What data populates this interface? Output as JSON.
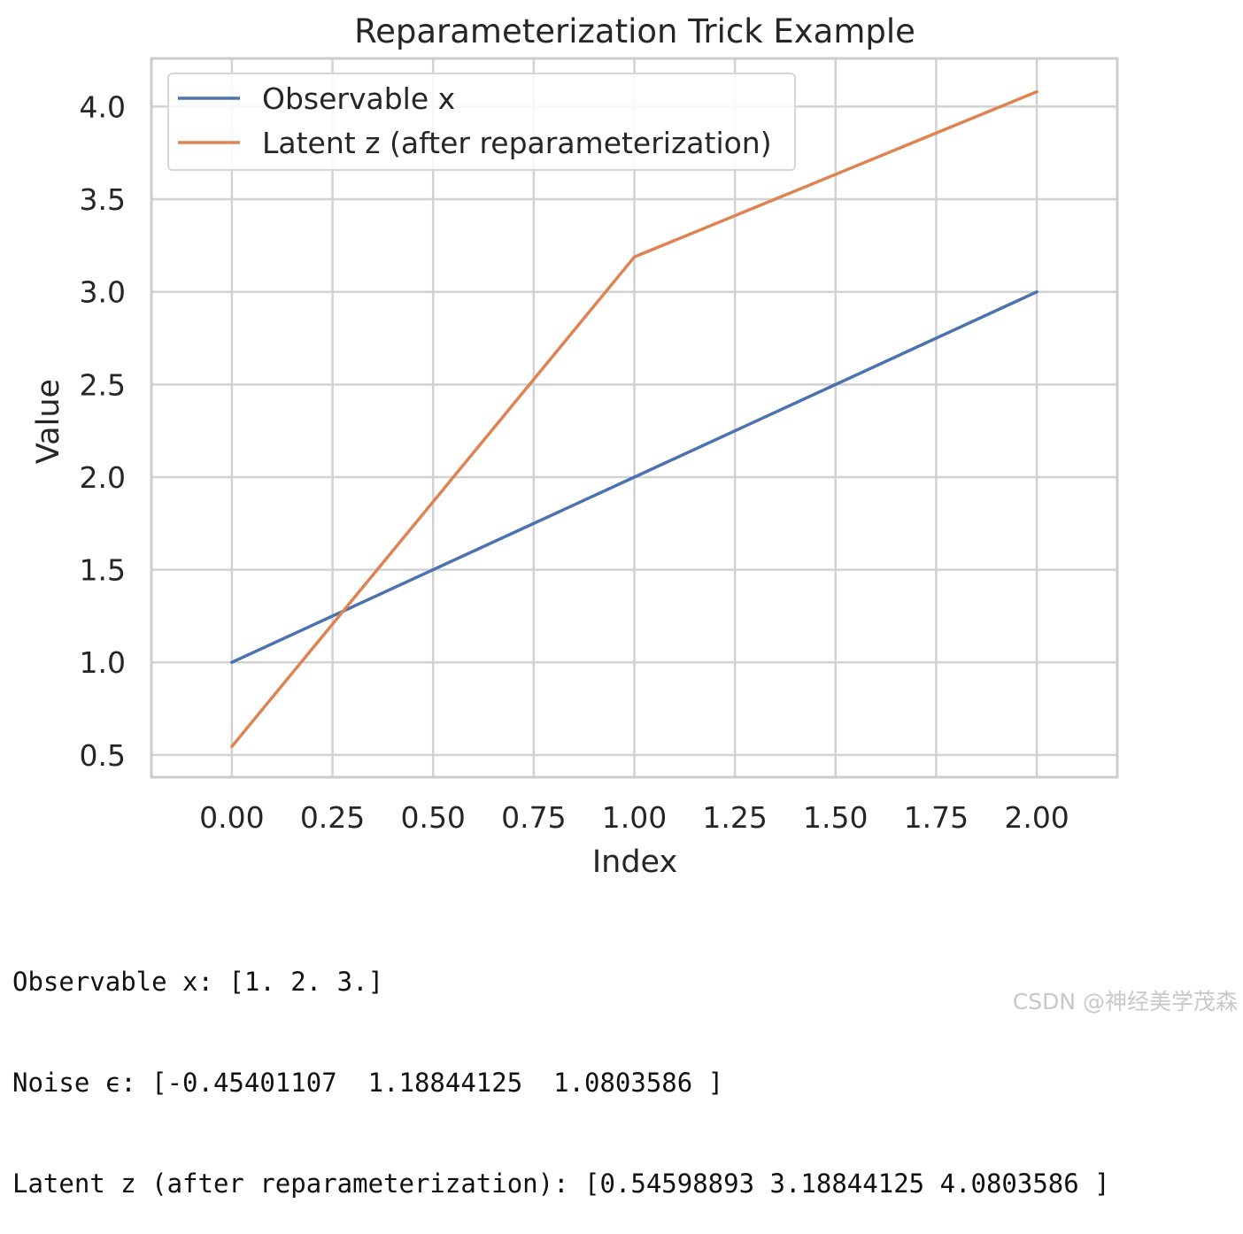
{
  "chart_data": {
    "type": "line",
    "title": "Reparameterization Trick Example",
    "xlabel": "Index",
    "ylabel": "Value",
    "x": [
      0,
      1,
      2
    ],
    "xlim": [
      -0.2,
      2.2
    ],
    "ylim": [
      0.38,
      4.26
    ],
    "xticks": [
      0,
      0.25,
      0.5,
      0.75,
      1.0,
      1.25,
      1.5,
      1.75,
      2.0
    ],
    "xtick_labels": [
      "0.00",
      "0.25",
      "0.50",
      "0.75",
      "1.00",
      "1.25",
      "1.50",
      "1.75",
      "2.00"
    ],
    "yticks": [
      0.5,
      1.0,
      1.5,
      2.0,
      2.5,
      3.0,
      3.5,
      4.0
    ],
    "ytick_labels": [
      "0.5",
      "1.0",
      "1.5",
      "2.0",
      "2.5",
      "3.0",
      "3.5",
      "4.0"
    ],
    "grid": true,
    "legend_position": "upper-left",
    "series": [
      {
        "name": "Observable x",
        "values": [
          1.0,
          2.0,
          3.0
        ],
        "color": "#4c72b0"
      },
      {
        "name": "Latent z (after reparameterization)",
        "values": [
          0.54598893,
          3.18844125,
          4.0803586
        ],
        "color": "#dd8452"
      }
    ]
  },
  "output": {
    "lines": [
      "Observable x: [1. 2. 3.]",
      "Noise ϵ: [-0.45401107  1.18844125  1.0803586 ]",
      "Latent z (after reparameterization): [0.54598893 3.18844125 4.0803586 ]"
    ]
  },
  "watermark": "CSDN @神经美学茂森"
}
